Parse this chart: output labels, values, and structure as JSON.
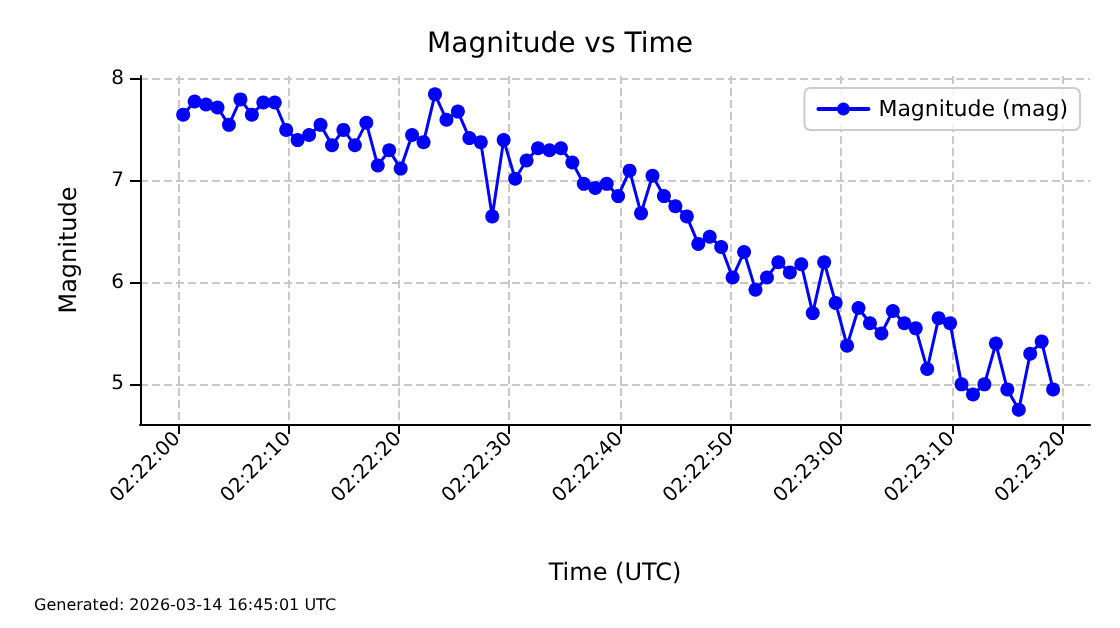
{
  "chart_data": {
    "type": "line",
    "title": "Magnitude vs Time",
    "xlabel": "Time (UTC)",
    "ylabel": "Magnitude",
    "annotations": [
      "Generated: 2026-03-14 16:45:01 UTC"
    ],
    "x": [
      2.366806,
      2.367094,
      2.367381,
      2.367669,
      2.367956,
      2.368244,
      2.368531,
      2.368819,
      2.369106,
      2.369394,
      2.369681,
      2.369969,
      2.370256,
      2.370544,
      2.370831,
      2.371119,
      2.371406,
      2.371694,
      2.371981,
      2.372269,
      2.372556,
      2.372844,
      2.373131,
      2.373419,
      2.373706,
      2.373994,
      2.374281,
      2.374569,
      2.374856,
      2.375144,
      2.375431,
      2.375719,
      2.376006,
      2.376294,
      2.376581,
      2.376869,
      2.377156,
      2.377444,
      2.377731,
      2.378019,
      2.378306,
      2.378594,
      2.378881,
      2.379169,
      2.379456,
      2.379744,
      2.380031,
      2.380319,
      2.380606,
      2.380894,
      2.381181,
      2.381469,
      2.381756,
      2.382044,
      2.382331,
      2.382619,
      2.382906,
      2.383194,
      2.383481,
      2.383769,
      2.384056,
      2.384344,
      2.384631,
      2.384919,
      2.385206,
      2.385494,
      2.385781,
      2.386069,
      2.386356,
      2.386644,
      2.386931,
      2.387219,
      2.387506,
      2.387794,
      2.388081,
      2.388369,
      2.388656
    ],
    "series": [
      {
        "name": "Magnitude (mag)",
        "color": "#0000ff",
        "values": [
          7.65,
          7.78,
          7.75,
          7.72,
          7.55,
          7.8,
          7.65,
          7.77,
          7.77,
          7.5,
          7.4,
          7.45,
          7.55,
          7.35,
          7.5,
          7.35,
          7.57,
          7.15,
          7.3,
          7.12,
          7.45,
          7.38,
          7.85,
          7.6,
          7.68,
          7.42,
          7.38,
          6.65,
          7.4,
          7.02,
          7.2,
          7.32,
          7.3,
          7.32,
          7.18,
          6.97,
          6.93,
          6.97,
          6.85,
          7.1,
          6.68,
          7.05,
          6.85,
          6.75,
          6.65,
          6.38,
          6.45,
          6.35,
          6.05,
          6.3,
          5.93,
          6.05,
          6.2,
          6.1,
          6.18,
          5.7,
          6.2,
          5.8,
          5.38,
          5.75,
          5.6,
          5.5,
          5.72,
          5.6,
          5.55,
          5.15,
          5.65,
          5.6,
          5.0,
          4.9,
          5.0,
          5.4,
          4.95,
          4.75,
          5.3,
          5.42,
          4.95
        ]
      }
    ],
    "xlim": [
      2.365722,
      2.389583
    ],
    "xticks": [
      {
        "value": 2.366667,
        "label": "02:22:00"
      },
      {
        "value": 2.369444,
        "label": "02:22:10"
      },
      {
        "value": 2.372222,
        "label": "02:22:20"
      },
      {
        "value": 2.375,
        "label": "02:22:30"
      },
      {
        "value": 2.377778,
        "label": "02:22:40"
      },
      {
        "value": 2.380556,
        "label": "02:22:50"
      },
      {
        "value": 2.383333,
        "label": "02:23:00"
      },
      {
        "value": 2.386111,
        "label": "02:23:10"
      },
      {
        "value": 2.388889,
        "label": "02:23:20"
      }
    ],
    "ylim": [
      4.61,
      8.03
    ],
    "yticks": [
      5,
      6,
      7,
      8
    ],
    "grid": true,
    "legend": "top right",
    "marker": "circle",
    "line_style": "solid"
  }
}
